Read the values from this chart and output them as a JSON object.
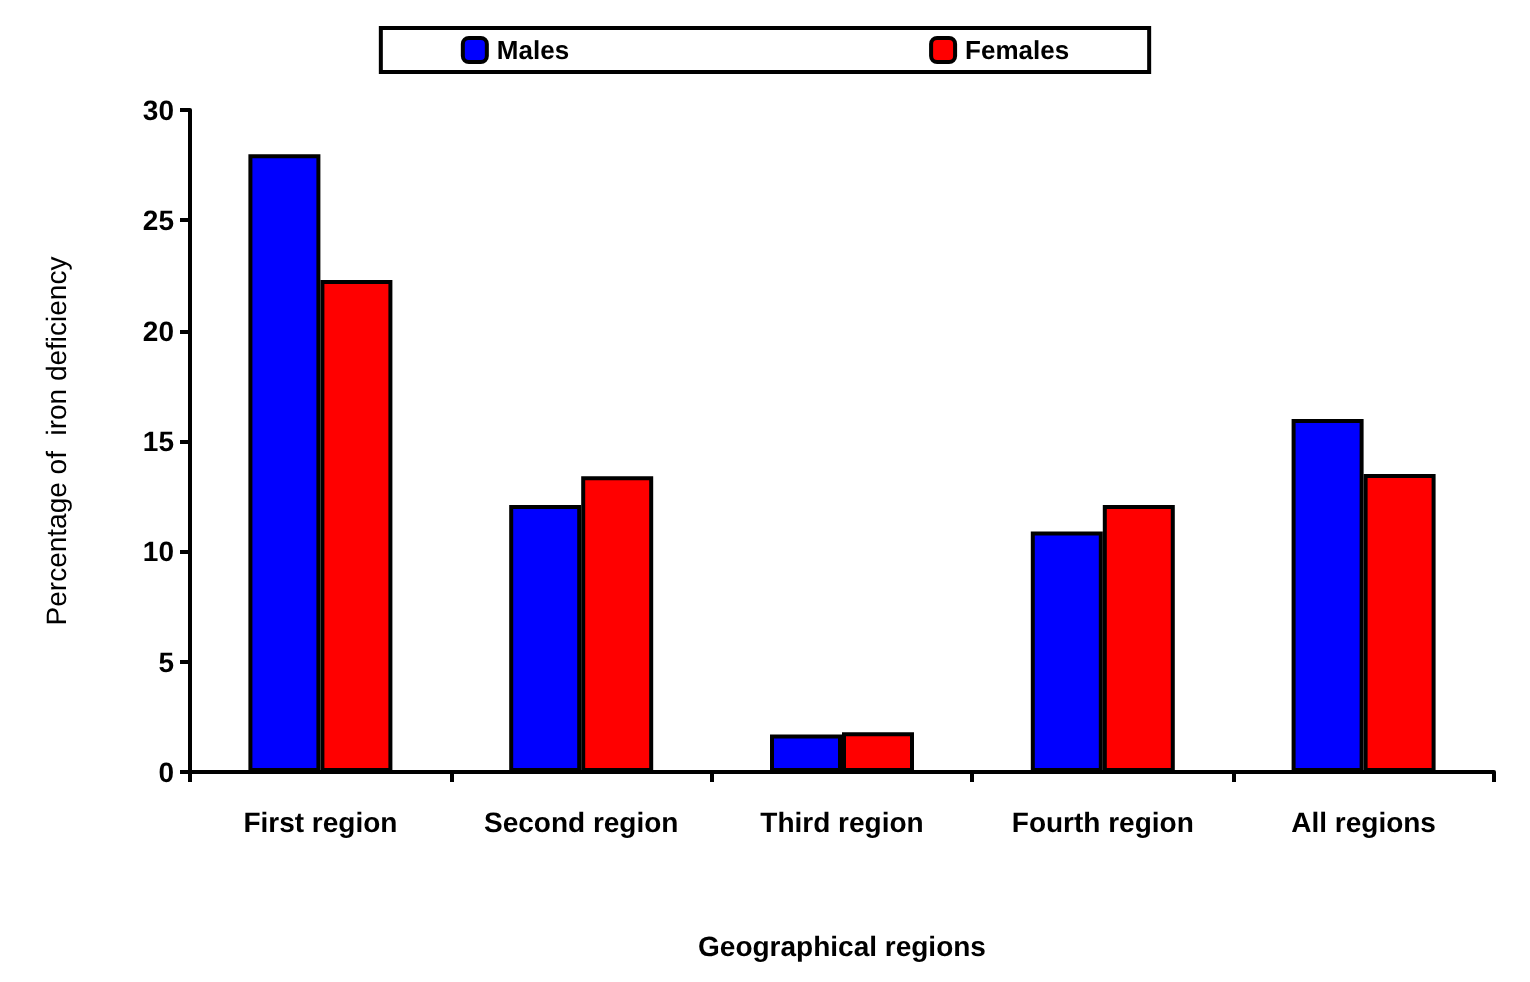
{
  "chart_data": {
    "type": "bar",
    "xlabel": "Geographical regions",
    "ylabel": "Percentage of  iron deficiency",
    "categories": [
      "First region",
      "Second region",
      "Third region",
      "Fourth region",
      "All regions"
    ],
    "series": [
      {
        "name": "Males",
        "color": "#0000ff",
        "values": [
          28,
          12.1,
          1.7,
          10.9,
          16
        ]
      },
      {
        "name": "Females",
        "color": "#ff0000",
        "values": [
          22.3,
          13.4,
          1.8,
          12.1,
          13.5
        ]
      }
    ],
    "ylim": [
      0,
      30
    ],
    "yticks": [
      0,
      5,
      10,
      15,
      20,
      25,
      30
    ],
    "grid": false,
    "legend": "top"
  }
}
